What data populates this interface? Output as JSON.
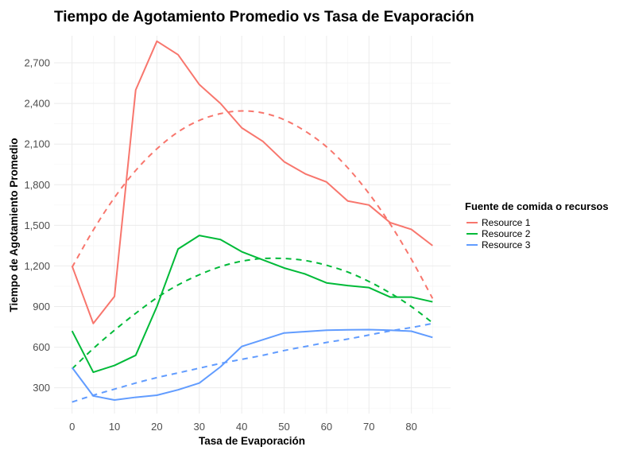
{
  "chart_data": {
    "type": "line",
    "title": "Tiempo de Agotamiento Promedio vs Tasa de Evaporación",
    "xlabel": "Tasa de Evaporación",
    "ylabel": "Tiempo de Agotamiento Promedio",
    "xlim": [
      -4.25,
      89.25
    ],
    "ylim": [
      110,
      2900
    ],
    "x_ticks": [
      0,
      10,
      20,
      30,
      40,
      50,
      60,
      70,
      80
    ],
    "x_tick_labels": [
      "0",
      "10",
      "20",
      "30",
      "40",
      "50",
      "60",
      "70",
      "80"
    ],
    "y_ticks": [
      300,
      600,
      900,
      1200,
      1500,
      1800,
      2100,
      2400,
      2700
    ],
    "y_tick_labels": [
      "300",
      "600",
      "900",
      "1,200",
      "1,500",
      "1,800",
      "2,100",
      "2,400",
      "2,700"
    ],
    "grid": true,
    "legend": {
      "title": "Fuente de comida o recursos",
      "placement": "right"
    },
    "x": [
      0,
      5,
      10,
      15,
      20,
      25,
      30,
      35,
      40,
      45,
      50,
      55,
      60,
      65,
      70,
      75,
      80,
      85
    ],
    "series": [
      {
        "name": "Resource 1",
        "color": "#F8766D",
        "values": [
          1200,
          775,
          975,
          2500,
          2860,
          2760,
          2540,
          2400,
          2220,
          2120,
          1970,
          1880,
          1820,
          1680,
          1650,
          1520,
          1470,
          1350
        ],
        "trend_values": [
          1190,
          1465,
          1705,
          1905,
          2065,
          2190,
          2275,
          2325,
          2345,
          2330,
          2280,
          2195,
          2080,
          1925,
          1735,
          1510,
          1250,
          960
        ]
      },
      {
        "name": "Resource 2",
        "color": "#00BA38",
        "values": [
          720,
          415,
          465,
          540,
          900,
          1325,
          1425,
          1395,
          1305,
          1245,
          1185,
          1140,
          1075,
          1055,
          1040,
          970,
          970,
          935
        ],
        "trend_values": [
          440,
          590,
          725,
          850,
          965,
          1060,
          1135,
          1195,
          1235,
          1255,
          1255,
          1240,
          1205,
          1155,
          1085,
          1000,
          900,
          780
        ]
      },
      {
        "name": "Resource 3",
        "color": "#619CFF",
        "values": [
          450,
          240,
          210,
          230,
          245,
          285,
          335,
          455,
          605,
          655,
          705,
          715,
          725,
          728,
          730,
          725,
          718,
          672
        ],
        "trend_values": [
          195,
          245,
          290,
          335,
          375,
          410,
          445,
          480,
          510,
          540,
          575,
          605,
          635,
          660,
          690,
          720,
          745,
          775
        ]
      }
    ]
  }
}
